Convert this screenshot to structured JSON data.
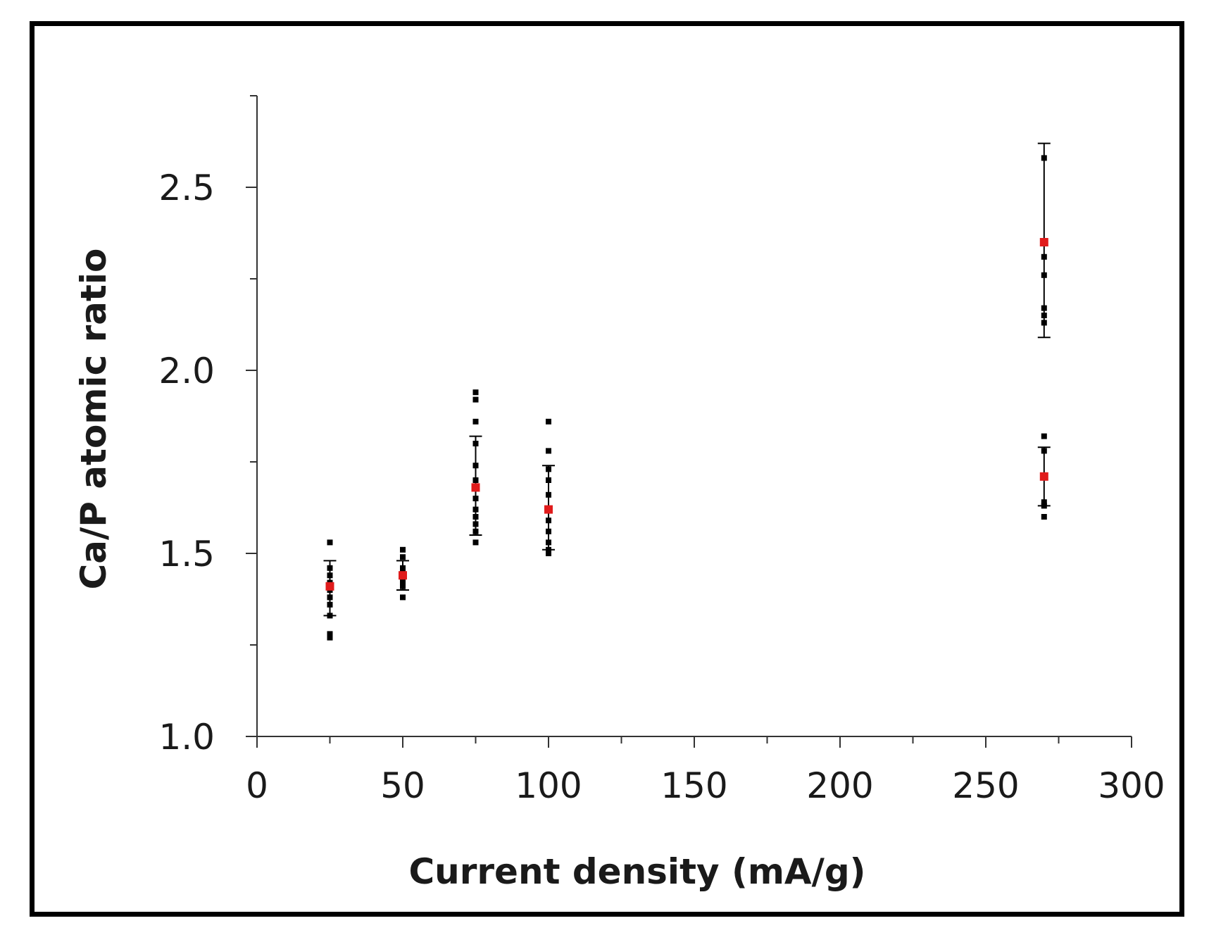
{
  "chart_data": {
    "type": "scatter",
    "title": "",
    "xlabel": "Current density (mA/g)",
    "ylabel": "Ca/P atomic ratio",
    "xlim": [
      0,
      300
    ],
    "ylim": [
      1.0,
      2.75
    ],
    "x_ticks": [
      0,
      50,
      100,
      150,
      200,
      250,
      300
    ],
    "x_tick_labels": [
      "0",
      "50",
      "100",
      "150",
      "200",
      "250",
      "300"
    ],
    "x_minor_step": 25,
    "y_ticks": [
      1.0,
      1.5,
      2.0,
      2.5
    ],
    "y_tick_labels": [
      "1.0",
      "1.5",
      "2.0",
      "2.5"
    ],
    "y_minor_step": 0.25,
    "grid": false,
    "legend": "none",
    "colors": {
      "points": "#000000",
      "mean": "#e01b1b",
      "axis": "#333333"
    },
    "series": [
      {
        "role": "measurements",
        "points": [
          {
            "x": 25,
            "y": 1.53
          },
          {
            "x": 25,
            "y": 1.46
          },
          {
            "x": 25,
            "y": 1.44
          },
          {
            "x": 25,
            "y": 1.42
          },
          {
            "x": 25,
            "y": 1.4
          },
          {
            "x": 25,
            "y": 1.38
          },
          {
            "x": 25,
            "y": 1.36
          },
          {
            "x": 25,
            "y": 1.33
          },
          {
            "x": 25,
            "y": 1.28
          },
          {
            "x": 25,
            "y": 1.27
          },
          {
            "x": 50,
            "y": 1.51
          },
          {
            "x": 50,
            "y": 1.49
          },
          {
            "x": 50,
            "y": 1.46
          },
          {
            "x": 50,
            "y": 1.45
          },
          {
            "x": 50,
            "y": 1.44
          },
          {
            "x": 50,
            "y": 1.43
          },
          {
            "x": 50,
            "y": 1.42
          },
          {
            "x": 50,
            "y": 1.41
          },
          {
            "x": 50,
            "y": 1.38
          },
          {
            "x": 75,
            "y": 1.94
          },
          {
            "x": 75,
            "y": 1.92
          },
          {
            "x": 75,
            "y": 1.86
          },
          {
            "x": 75,
            "y": 1.8
          },
          {
            "x": 75,
            "y": 1.74
          },
          {
            "x": 75,
            "y": 1.7
          },
          {
            "x": 75,
            "y": 1.65
          },
          {
            "x": 75,
            "y": 1.62
          },
          {
            "x": 75,
            "y": 1.6
          },
          {
            "x": 75,
            "y": 1.58
          },
          {
            "x": 75,
            "y": 1.56
          },
          {
            "x": 75,
            "y": 1.53
          },
          {
            "x": 100,
            "y": 1.86
          },
          {
            "x": 100,
            "y": 1.78
          },
          {
            "x": 100,
            "y": 1.73
          },
          {
            "x": 100,
            "y": 1.7
          },
          {
            "x": 100,
            "y": 1.66
          },
          {
            "x": 100,
            "y": 1.62
          },
          {
            "x": 100,
            "y": 1.59
          },
          {
            "x": 100,
            "y": 1.56
          },
          {
            "x": 100,
            "y": 1.53
          },
          {
            "x": 100,
            "y": 1.51
          },
          {
            "x": 100,
            "y": 1.5
          },
          {
            "x": 270,
            "y": 2.58
          },
          {
            "x": 270,
            "y": 2.31
          },
          {
            "x": 270,
            "y": 2.26
          },
          {
            "x": 270,
            "y": 2.17
          },
          {
            "x": 270,
            "y": 2.15
          },
          {
            "x": 270,
            "y": 2.13
          },
          {
            "x": 270,
            "y": 1.82
          },
          {
            "x": 270,
            "y": 1.78
          },
          {
            "x": 270,
            "y": 1.64
          },
          {
            "x": 270,
            "y": 1.63
          },
          {
            "x": 270,
            "y": 1.6
          }
        ]
      },
      {
        "role": "mean",
        "points": [
          {
            "x": 25,
            "y": 1.41,
            "y_low": 1.33,
            "y_high": 1.48
          },
          {
            "x": 50,
            "y": 1.44,
            "y_low": 1.4,
            "y_high": 1.48
          },
          {
            "x": 75,
            "y": 1.68,
            "y_low": 1.55,
            "y_high": 1.82
          },
          {
            "x": 100,
            "y": 1.62,
            "y_low": 1.51,
            "y_high": 1.74
          },
          {
            "x": 270,
            "y": 2.35,
            "y_low": 2.09,
            "y_high": 2.62
          },
          {
            "x": 270,
            "y": 1.71,
            "y_low": 1.63,
            "y_high": 1.79
          }
        ]
      }
    ]
  }
}
